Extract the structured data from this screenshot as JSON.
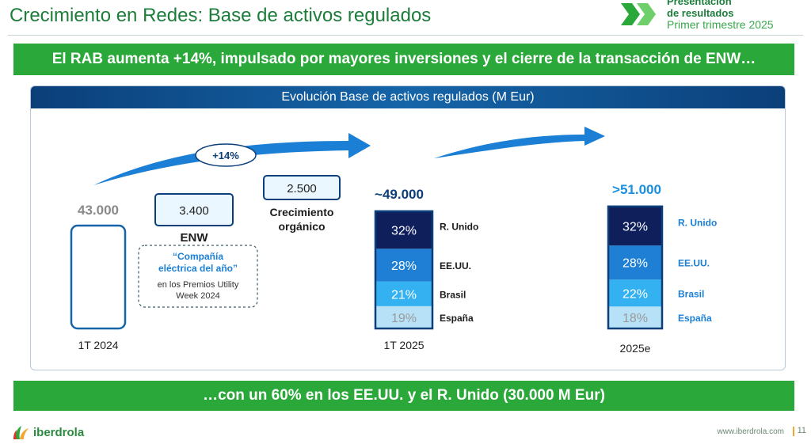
{
  "header": {
    "title": "Crecimiento en Redes: Base de activos regulados",
    "brand_line1": "Presentación",
    "brand_line2": "de resultados",
    "brand_line3": "Primer trimestre 2025"
  },
  "headline": "El RAB aumenta +14%, impulsado por mayores inversiones y el cierre de la  transacción de ENW…",
  "panel_title": "Evolución Base de activos regulados (M Eur)",
  "bottom_message": "…con un 60% en los EE.UU. y el R. Unido (30.000 M Eur)",
  "footer": {
    "brand": "iberdrola",
    "url": "www.iberdrola.com",
    "page": "11"
  },
  "colors": {
    "r_unido": "#0f1f5c",
    "ee_uu": "#1e7fd4",
    "brasil": "#34b1f0",
    "espana": "#b7e1f7",
    "green": "#2aa83a",
    "arrow": "#1b7fd6"
  },
  "chart_data": {
    "type": "bar",
    "categories": [
      "1T 2024",
      "1T 2025",
      "2025e"
    ],
    "totals": [
      43000,
      49000,
      51000
    ],
    "total_labels": [
      "43.000",
      "~49.000",
      ">51.000"
    ],
    "growth_label": "+14%",
    "bridge": [
      {
        "name": "ENW",
        "value": 3400,
        "label": "3.400"
      },
      {
        "name": "Crecimiento orgánico",
        "value": 2500,
        "label": "2.500"
      }
    ],
    "enw_note": {
      "quote_line1": "“Compañía",
      "quote_line2": "eléctrica del año”",
      "line3": "en los Premios Utility",
      "line4": "Week 2024"
    },
    "series": [
      {
        "name": "R. Unido",
        "values": [
          null,
          32,
          32
        ],
        "labels": [
          "",
          "32%",
          "32%"
        ]
      },
      {
        "name": "EE.UU.",
        "values": [
          null,
          28,
          28
        ],
        "labels": [
          "",
          "28%",
          "28%"
        ]
      },
      {
        "name": "Brasil",
        "values": [
          null,
          21,
          22
        ],
        "labels": [
          "",
          "21%",
          "22%"
        ]
      },
      {
        "name": "España",
        "values": [
          null,
          19,
          18
        ],
        "labels": [
          "",
          "19%",
          "18%"
        ]
      }
    ],
    "ylabel": "",
    "xlabel": ""
  }
}
